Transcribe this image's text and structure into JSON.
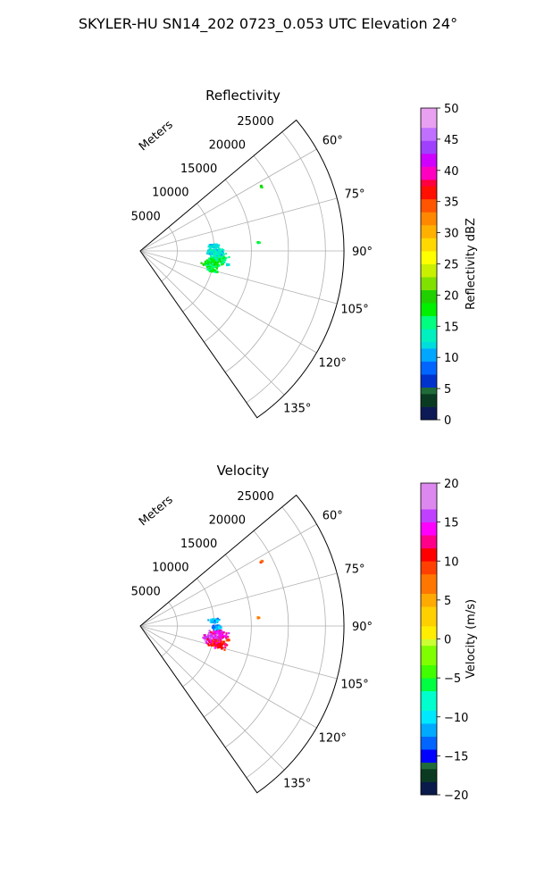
{
  "figure": {
    "suptitle": "SKYLER-HU  SN14_202  0723_0.053 UTC Elevation 24°"
  },
  "chart_data": [
    {
      "type": "heatmap",
      "projection": "polar-sector",
      "title": "Reflectivity",
      "range_label": "Meters",
      "range_ticks": [
        5000,
        10000,
        15000,
        20000,
        25000
      ],
      "range_tick_labels": [
        "5000",
        "10000",
        "15000",
        "20000",
        "25000"
      ],
      "range_max": 27500,
      "angle_range_deg": [
        50,
        145
      ],
      "angle_ticks": [
        "60°",
        "75°",
        "90°",
        "105°",
        "120°",
        "135°"
      ],
      "angle_tick_values": [
        60,
        75,
        90,
        105,
        120,
        135
      ],
      "grid": true,
      "colorbar": {
        "label": "Reflectivity dBZ",
        "vmin": 0,
        "vmax": 50,
        "ticks": [
          0,
          5,
          10,
          15,
          20,
          25,
          30,
          35,
          40,
          45,
          50
        ],
        "tick_labels": [
          "0",
          "5",
          "10",
          "15",
          "20",
          "25",
          "30",
          "35",
          "40",
          "45",
          "50"
        ]
      },
      "echo_regions": [
        {
          "az_deg": 96,
          "range_m": 10500,
          "value": 16
        },
        {
          "az_deg": 100,
          "range_m": 9800,
          "value": 18
        },
        {
          "az_deg": 91,
          "range_m": 10200,
          "value": 13
        },
        {
          "az_deg": 86,
          "range_m": 10000,
          "value": 12
        },
        {
          "az_deg": 105,
          "range_m": 10000,
          "value": 17
        },
        {
          "az_deg": 62,
          "range_m": 18500,
          "value": 19
        },
        {
          "az_deg": 86,
          "range_m": 16000,
          "value": 17
        },
        {
          "az_deg": 99,
          "range_m": 12000,
          "value": 13
        }
      ]
    },
    {
      "type": "heatmap",
      "projection": "polar-sector",
      "title": "Velocity",
      "range_label": "Meters",
      "range_ticks": [
        5000,
        10000,
        15000,
        20000,
        25000
      ],
      "range_tick_labels": [
        "5000",
        "10000",
        "15000",
        "20000",
        "25000"
      ],
      "range_max": 27500,
      "angle_range_deg": [
        50,
        145
      ],
      "angle_ticks": [
        "60°",
        "75°",
        "90°",
        "105°",
        "120°",
        "135°"
      ],
      "angle_tick_values": [
        60,
        75,
        90,
        105,
        120,
        135
      ],
      "grid": true,
      "colorbar": {
        "label": "Velocity (m/s)",
        "vmin": -20,
        "vmax": 20,
        "ticks": [
          -20,
          -15,
          -10,
          -5,
          0,
          5,
          10,
          15,
          20
        ],
        "tick_labels": [
          "−20",
          "−15",
          "−10",
          "−5",
          "0",
          "5",
          "10",
          "15",
          "20"
        ]
      },
      "echo_regions": [
        {
          "az_deg": 96,
          "range_m": 10500,
          "value": 14
        },
        {
          "az_deg": 100,
          "range_m": 9800,
          "value": 16
        },
        {
          "az_deg": 103,
          "range_m": 10600,
          "value": 11
        },
        {
          "az_deg": 91,
          "range_m": 10200,
          "value": -12
        },
        {
          "az_deg": 86,
          "range_m": 10000,
          "value": -11
        },
        {
          "az_deg": 62,
          "range_m": 18500,
          "value": 7
        },
        {
          "az_deg": 86,
          "range_m": 16000,
          "value": 7
        },
        {
          "az_deg": 99,
          "range_m": 12000,
          "value": 8
        }
      ]
    }
  ]
}
